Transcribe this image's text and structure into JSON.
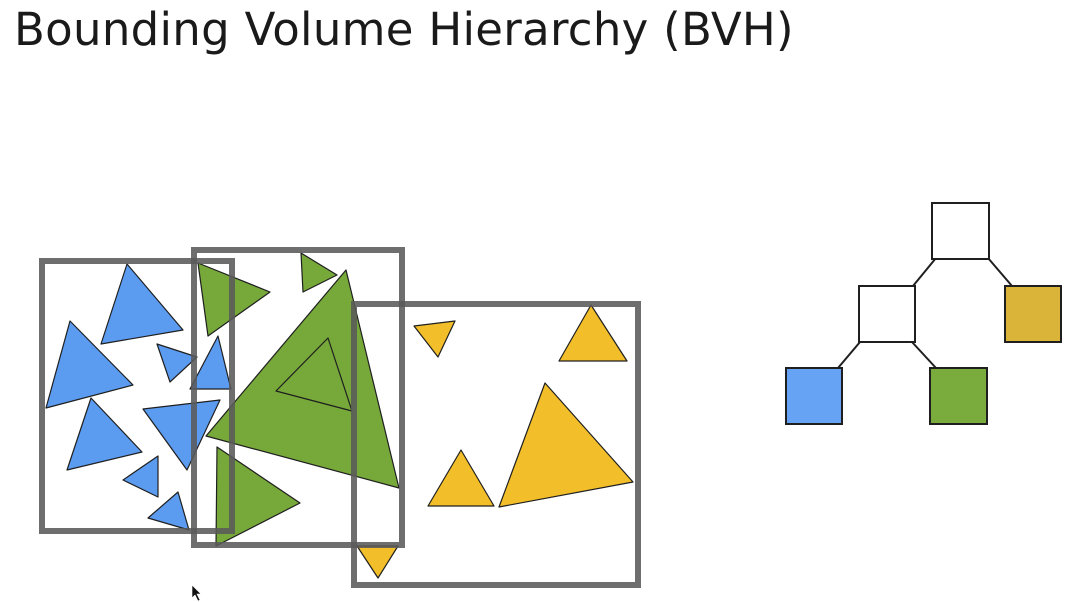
{
  "slide": {
    "title": "Bounding Volume Hierarchy (BVH)"
  },
  "colors": {
    "blue": "#5b9bf0",
    "green": "#76a83a",
    "yellow": "#f2bf2a",
    "node_yellow": "#d9b438",
    "node_blue": "#66a3f5",
    "node_green": "#7aab3d",
    "box_stroke": "#5a5a5a",
    "outline": "#1f1f1f"
  },
  "scene": {
    "bounding_boxes": [
      "blue-group-box",
      "green-group-box",
      "yellow-group-box"
    ],
    "triangle_groups": [
      "blue",
      "green",
      "yellow"
    ]
  },
  "tree": {
    "nodes": [
      {
        "id": "root",
        "fill": "none"
      },
      {
        "id": "internal",
        "fill": "none"
      },
      {
        "id": "leaf-yellow",
        "fill": "yellow"
      },
      {
        "id": "leaf-blue",
        "fill": "blue"
      },
      {
        "id": "leaf-green",
        "fill": "green"
      }
    ],
    "edges": [
      [
        "root",
        "internal"
      ],
      [
        "root",
        "leaf-yellow"
      ],
      [
        "internal",
        "leaf-blue"
      ],
      [
        "internal",
        "leaf-green"
      ]
    ]
  },
  "cursor": {
    "icon": "mouse-pointer-icon"
  }
}
